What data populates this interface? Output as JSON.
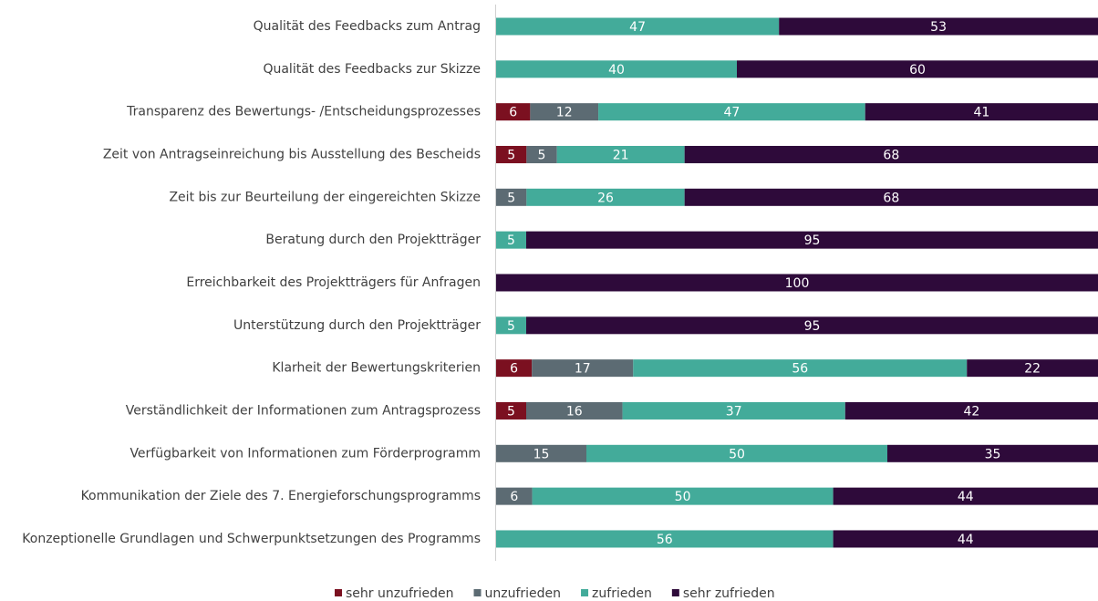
{
  "chart_data": {
    "type": "bar",
    "orientation": "horizontal",
    "stacking": "percent",
    "categories": [
      "Qualität des Feedbacks zum Antrag",
      "Qualität des Feedbacks zur Skizze",
      "Transparenz des Bewertungs- /Entscheidungsprozesses",
      "Zeit von Antragseinreichung bis Ausstellung des Bescheids",
      "Zeit bis zur Beurteilung der eingereichten Skizze",
      "Beratung durch den Projektträger",
      "Erreichbarkeit des Projektträgers für Anfragen",
      "Unterstützung durch den Projektträger",
      "Klarheit der Bewertungskriterien",
      "Verständlichkeit der Informationen zum Antragsprozess",
      "Verfügbarkeit von Informationen zum Förderprogramm",
      "Kommunikation der Ziele des 7. Energieforschungsprogramms",
      "Konzeptionelle Grundlagen und Schwerpunktsetzungen des Programms"
    ],
    "series": [
      {
        "name": "sehr unzufrieden",
        "color": "#7b1020",
        "values": [
          null,
          null,
          6,
          5,
          null,
          null,
          null,
          null,
          6,
          5,
          null,
          null,
          null
        ]
      },
      {
        "name": "unzufrieden",
        "color": "#5c6b73",
        "values": [
          null,
          null,
          12,
          5,
          5,
          null,
          null,
          null,
          17,
          16,
          15,
          6,
          null
        ]
      },
      {
        "name": "zufrieden",
        "color": "#43ab9a",
        "values": [
          47,
          40,
          47,
          21,
          26,
          5,
          null,
          5,
          56,
          37,
          50,
          50,
          56
        ]
      },
      {
        "name": "sehr zufrieden",
        "color": "#2e0a3a",
        "values": [
          53,
          60,
          41,
          68,
          68,
          95,
          100,
          95,
          22,
          42,
          35,
          44,
          44
        ]
      }
    ],
    "legend": "bottom"
  }
}
